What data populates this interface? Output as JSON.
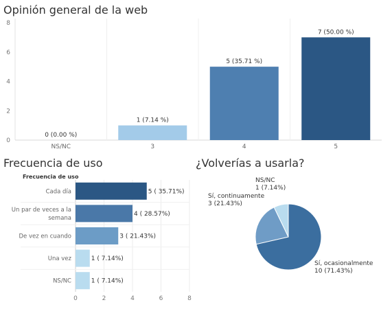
{
  "chart_data": [
    {
      "type": "bar",
      "title": "Opinión general de la web",
      "categories": [
        "NS/NC",
        "3",
        "4",
        "5"
      ],
      "values": [
        0,
        1,
        5,
        7
      ],
      "data_labels": [
        "0 (0.00 %)",
        "1 (7.14 %)",
        "5 (35.71 %)",
        "7 (50.00 %)"
      ],
      "colors": [
        "#b9dcef",
        "#a3cbe9",
        "#4e7fb0",
        "#2b5784"
      ],
      "ylim": [
        0,
        8
      ],
      "yticks": [
        "0",
        "2",
        "4",
        "6",
        "8"
      ],
      "grid": true
    },
    {
      "type": "bar",
      "orientation": "horizontal",
      "title": "Frecuencia de uso",
      "ylabel": "Frecuencia de uso",
      "categories": [
        "Cada día",
        "Un par de veces a la semana",
        "De vez en cuando",
        "Una vez",
        "NS/NC"
      ],
      "category_lines": [
        [
          "Cada día"
        ],
        [
          "Un par de veces a la",
          "semana"
        ],
        [
          "De vez en cuando"
        ],
        [
          "Una vez"
        ],
        [
          "NS/NC"
        ]
      ],
      "values": [
        5,
        4,
        3,
        1,
        1
      ],
      "data_labels": [
        "5 ( 35.71%)",
        "4 ( 28.57%)",
        "3 ( 21.43%)",
        "1 ( 7.14%)",
        "1 ( 7.14%)"
      ],
      "colors": [
        "#2b5784",
        "#4a78a8",
        "#6c9cc6",
        "#b9dcef",
        "#b9dcef"
      ],
      "xlim": [
        0,
        8
      ],
      "xticks": [
        "0",
        "2",
        "4",
        "6",
        "8"
      ],
      "grid": true
    },
    {
      "type": "pie",
      "title": "¿Volverías a usarla?",
      "slices": [
        {
          "label_lines": [
            "Sí, ocasionalmente",
            "10 (71.43%)"
          ],
          "value": 10,
          "color": "#3b6e9f"
        },
        {
          "label_lines": [
            "Sí, continuamente",
            "3 (21.43%)"
          ],
          "value": 3,
          "color": "#6f9cc6"
        },
        {
          "label_lines": [
            "NS/NC",
            "1 (7.14%)"
          ],
          "value": 1,
          "color": "#b9dcef"
        }
      ]
    }
  ]
}
